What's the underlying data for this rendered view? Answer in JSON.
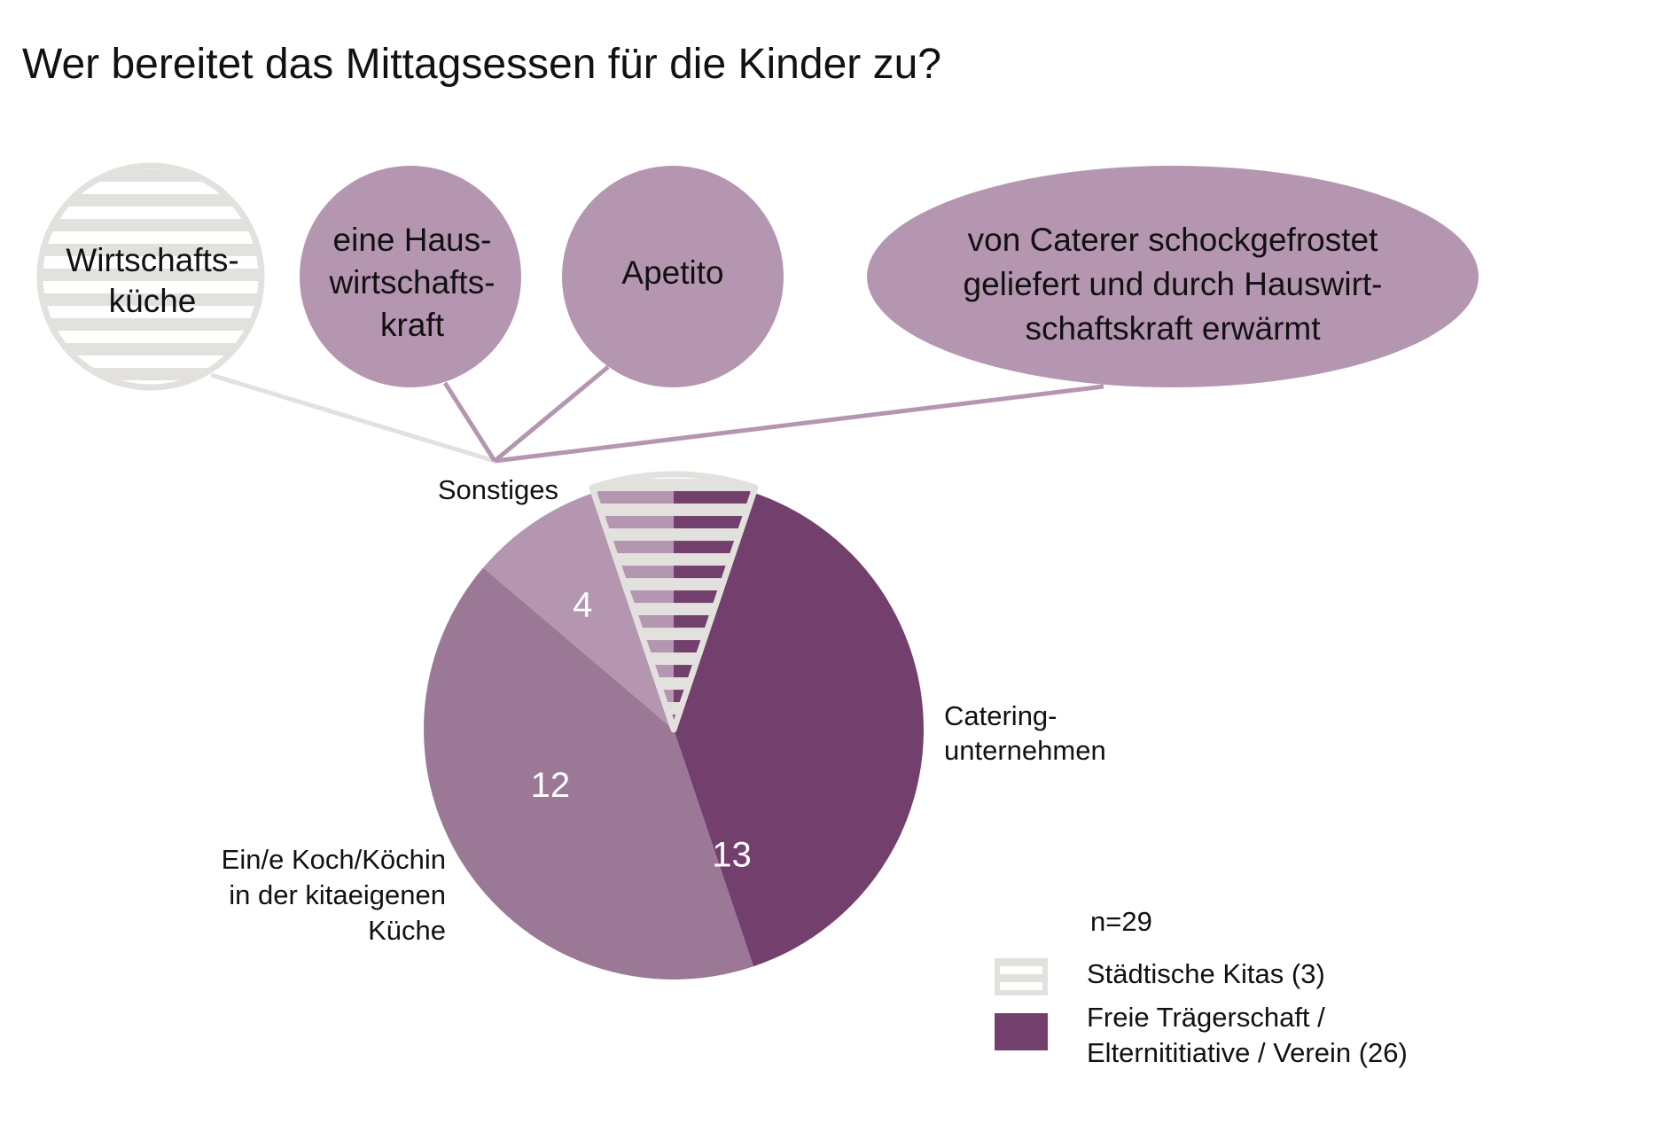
{
  "chart_data": {
    "type": "pie",
    "title": "Wer bereitet das Mittagsessen für die Kinder zu?",
    "n_label": "n=29",
    "colors": {
      "sonstiges": "#b596b1",
      "koch": "#9b7896",
      "catering": "#733f6c",
      "staedtisch_fill": "#ffffff",
      "staedtisch_stripe": "#e3e1dd"
    },
    "slices": [
      {
        "key": "catering",
        "label": "Catering-\nunternehmen",
        "value": 13,
        "value_label": "13",
        "color": "#733f6c",
        "hatched_part": 2
      },
      {
        "key": "koch",
        "label": "Ein/e Koch/Köchin\nin der kitaeigenen\nKüche",
        "value": 12,
        "value_label": "12",
        "color": "#9b7896",
        "hatched_part": 0
      },
      {
        "key": "sonstiges",
        "label": "Sonstiges",
        "value": 4,
        "value_label": "4",
        "color": "#b596b1",
        "hatched_part": 1
      }
    ],
    "sonstiges_details": [
      {
        "label": "Wirtschafts-\nküche",
        "group": "Städtische Kitas"
      },
      {
        "label": "eine Haus-\nwirtschafts-\nkraft",
        "group": "Freie Trägerschaft"
      },
      {
        "label": "Apetito",
        "group": "Freie Trägerschaft"
      },
      {
        "label": "von Caterer schockgefrostet\ngeliefert und durch Hauswirt-\nschaftskraft erwärmt",
        "group": "Freie Trägerschaft"
      }
    ],
    "legend": [
      {
        "label": "Städtische Kitas (3)",
        "style": "hatched",
        "color": "#e3e1dd"
      },
      {
        "label": "Freie Trägerschaft /\nElternititiative / Verein (26)",
        "style": "solid",
        "color": "#733f6c"
      }
    ]
  }
}
